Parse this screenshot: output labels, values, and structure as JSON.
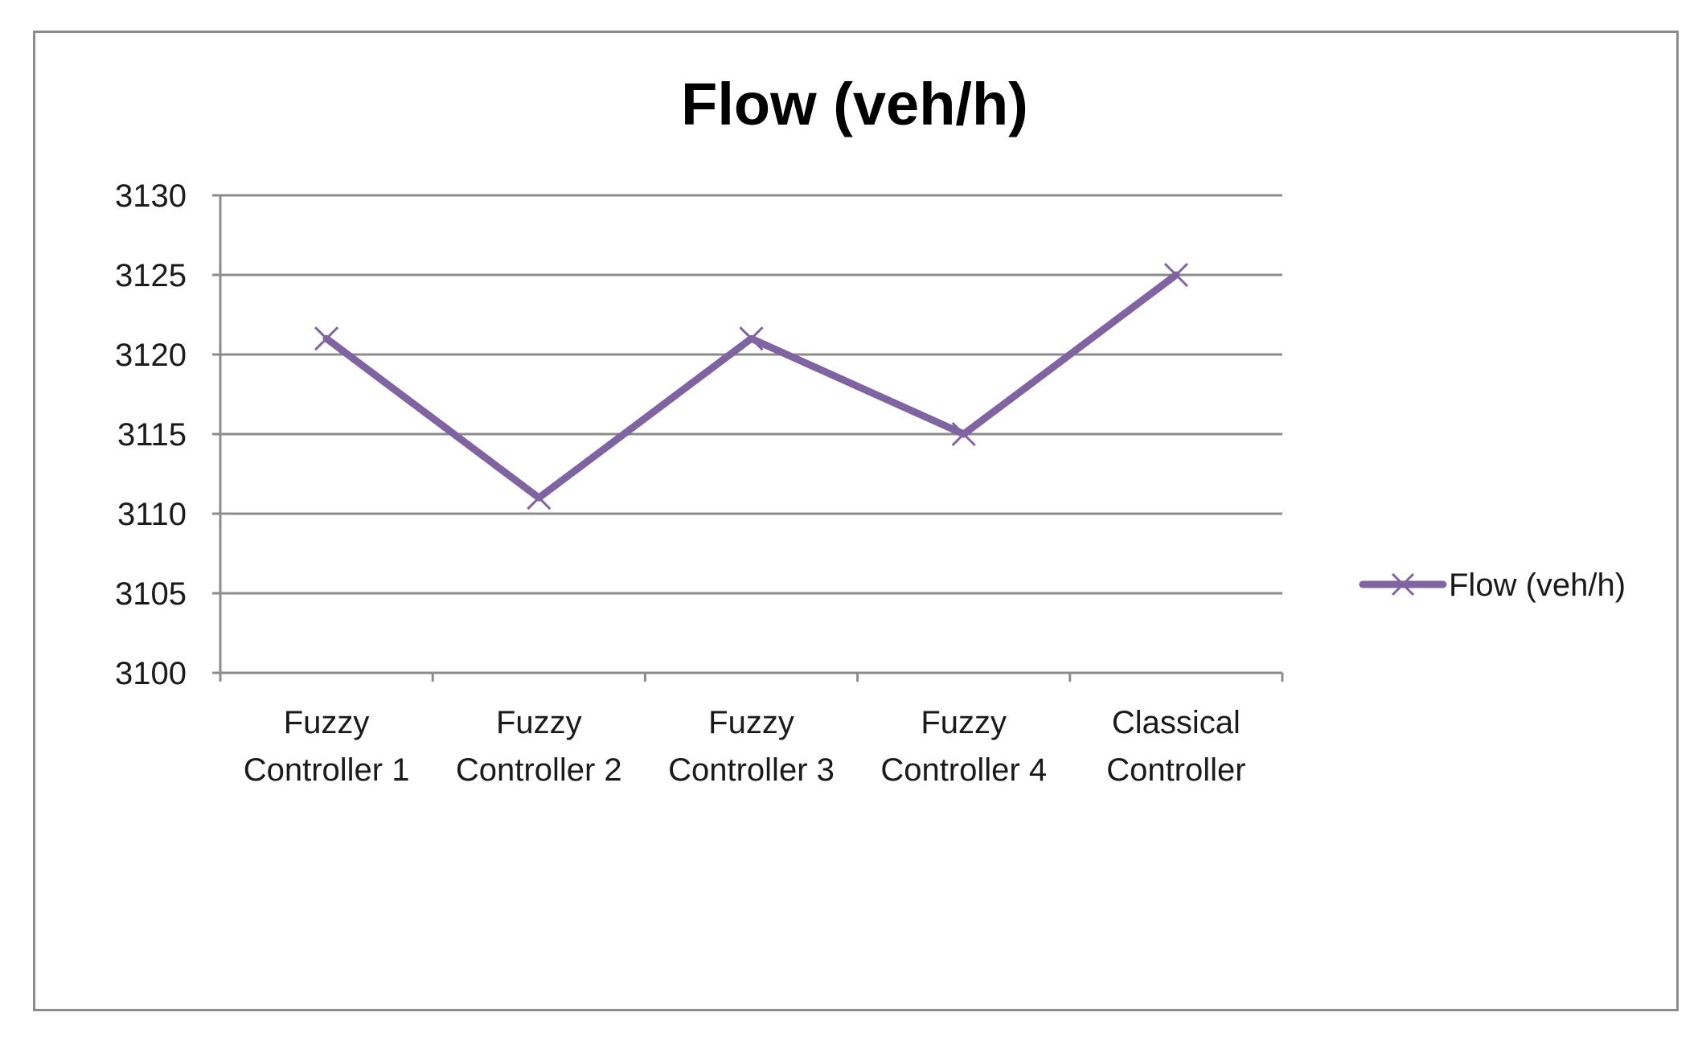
{
  "chart_data": {
    "type": "line",
    "title": "Flow (veh/h)",
    "xlabel": "",
    "ylabel": "",
    "categories": [
      [
        "Fuzzy",
        "Controller 1"
      ],
      [
        "Fuzzy",
        "Controller 2"
      ],
      [
        "Fuzzy",
        "Controller 3"
      ],
      [
        "Fuzzy",
        "Controller 4"
      ],
      [
        "Classical",
        "Controller"
      ]
    ],
    "series": [
      {
        "name": "Flow (veh/h)",
        "values": [
          3121,
          3111,
          3121,
          3115,
          3125
        ],
        "color": "#8064A2",
        "marker": "x"
      }
    ],
    "ylim": [
      3100,
      3130
    ],
    "yticks": [
      3100,
      3105,
      3110,
      3115,
      3120,
      3125,
      3130
    ],
    "grid": true,
    "legend": "right"
  }
}
